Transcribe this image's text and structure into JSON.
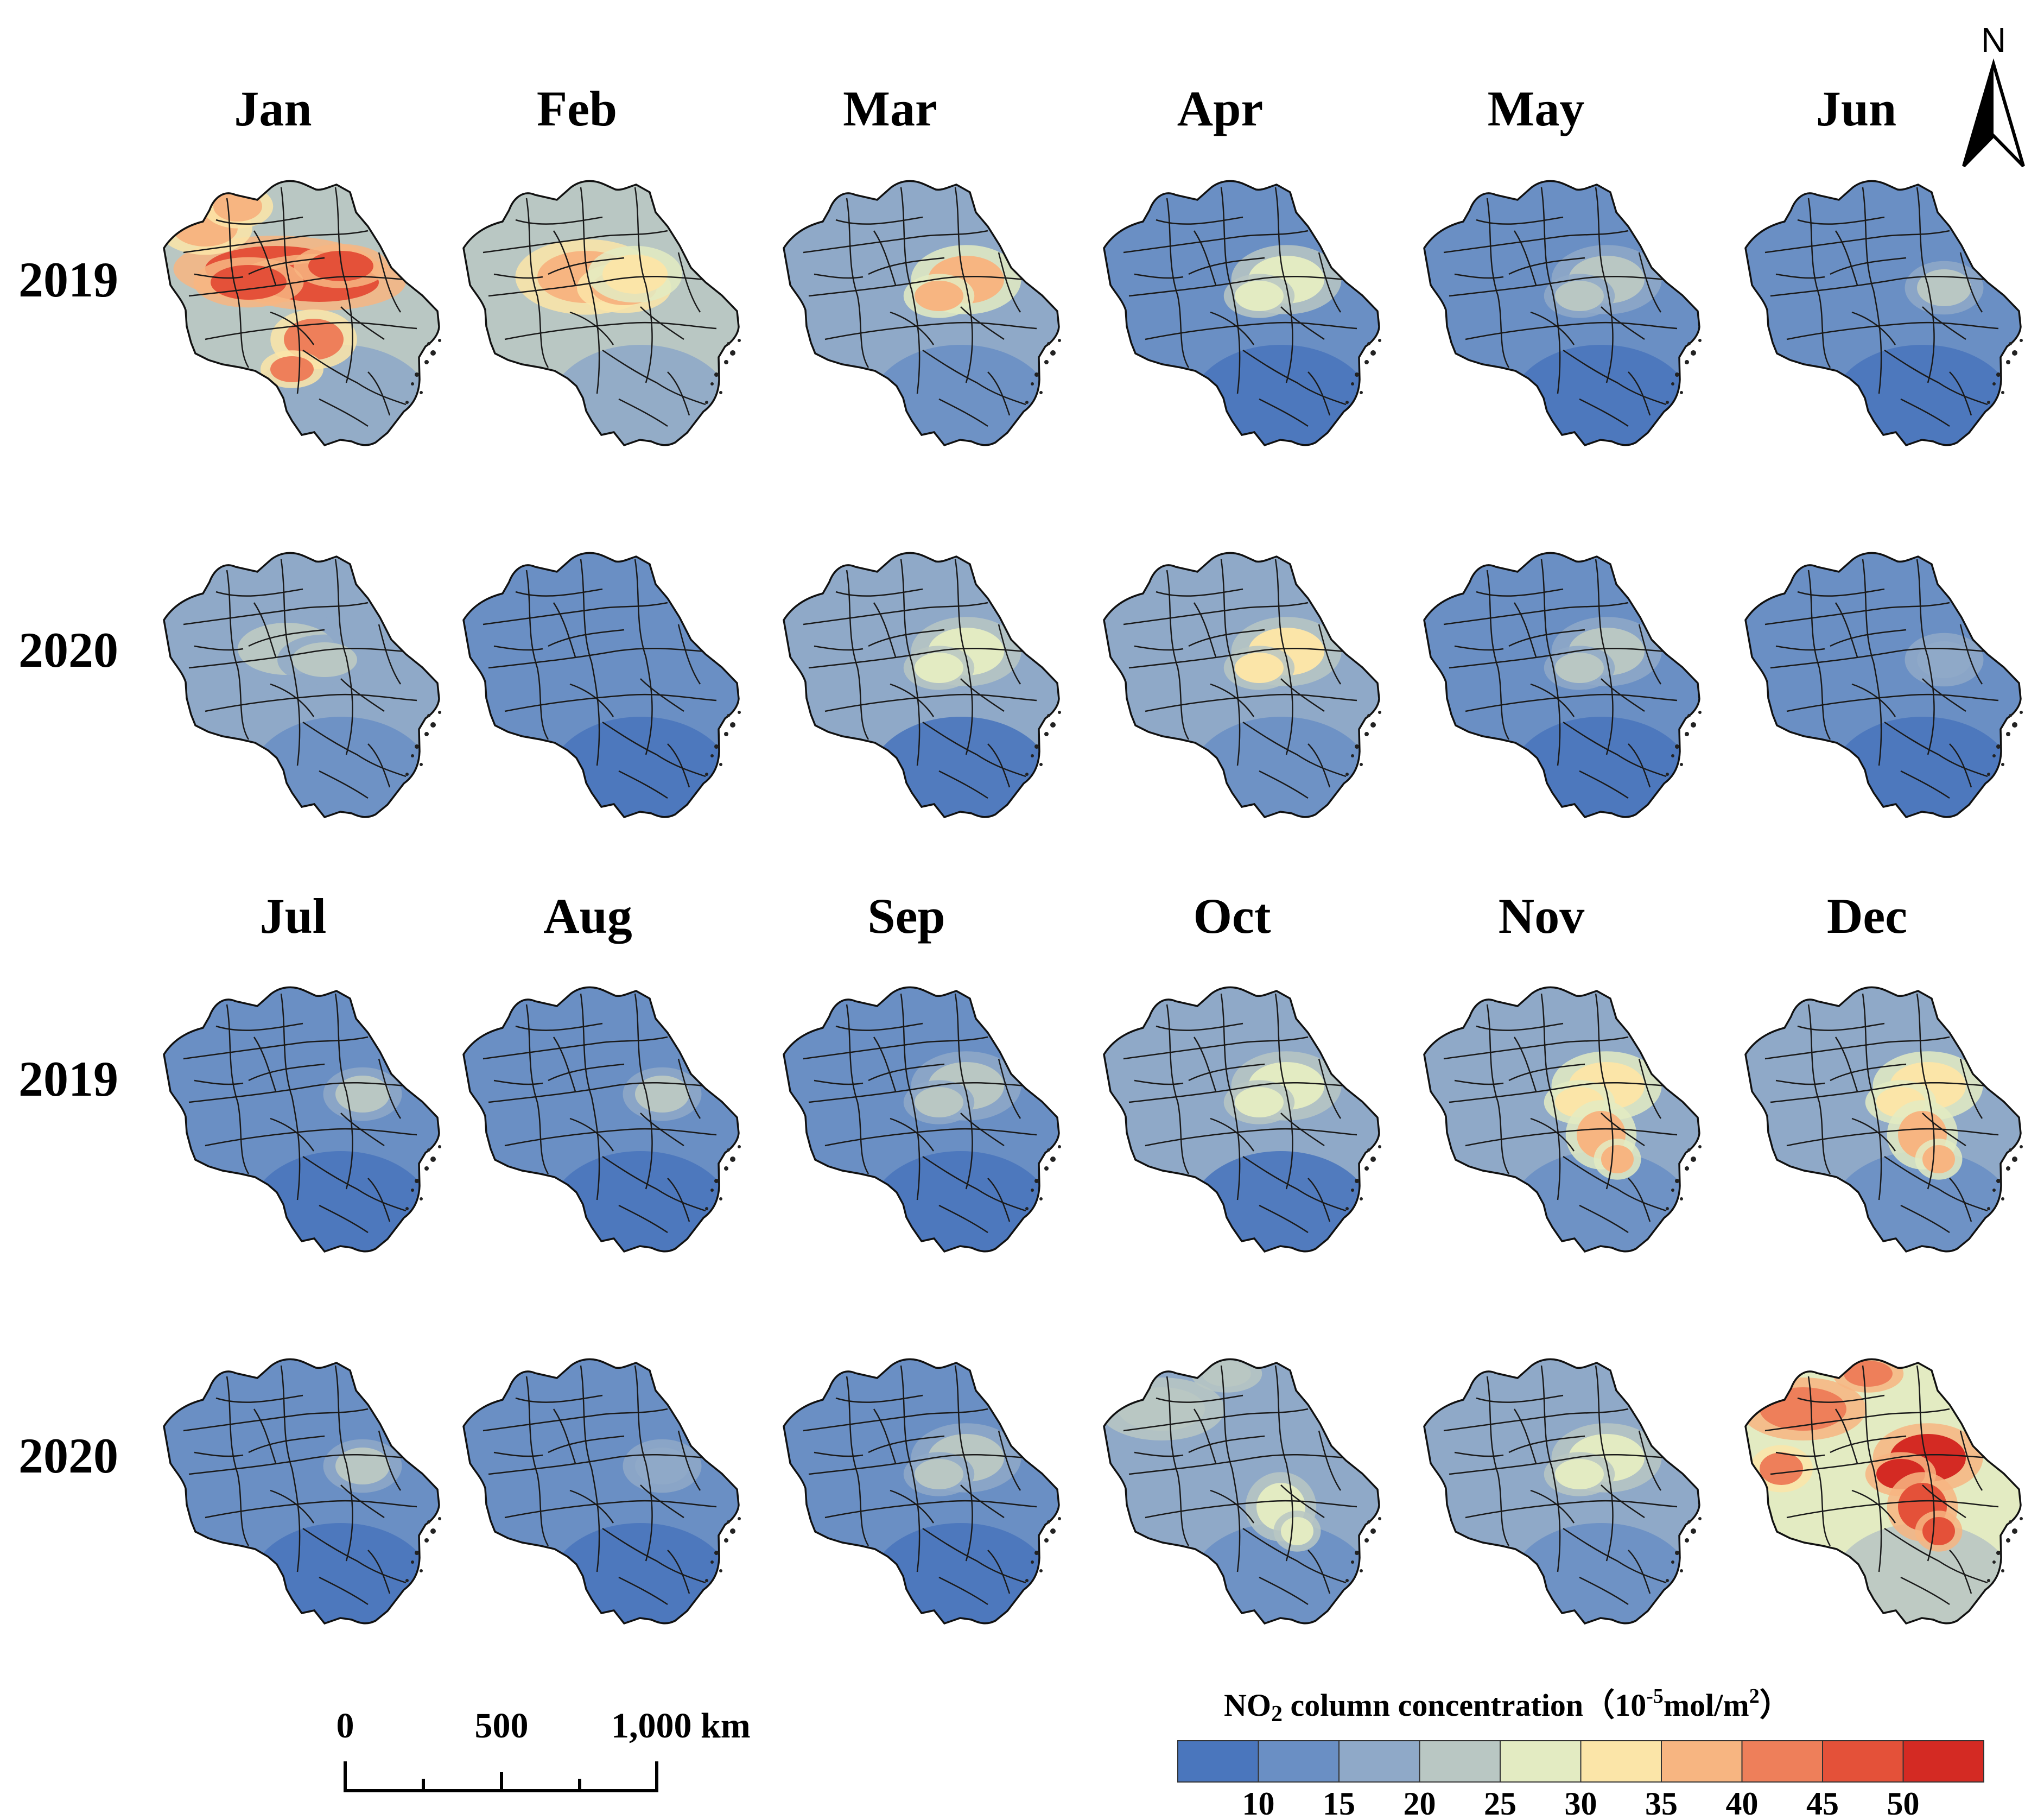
{
  "figure": {
    "months": [
      "Jan",
      "Feb",
      "Mar",
      "Apr",
      "May",
      "Jun",
      "Jul",
      "Aug",
      "Sep",
      "Oct",
      "Nov",
      "Dec"
    ],
    "years": [
      "2019",
      "2020"
    ]
  },
  "map_data": {
    "panels": [
      {
        "month": "Jan",
        "year": "2019",
        "base_level": 24,
        "hotspots": [
          {
            "zone": "center-band",
            "level": 46
          },
          {
            "zone": "north-west",
            "level": 36
          },
          {
            "zone": "south-central",
            "level": 40
          }
        ]
      },
      {
        "month": "Jan",
        "year": "2020",
        "base_level": 16,
        "hotspots": [
          {
            "zone": "center",
            "level": 23
          }
        ]
      },
      {
        "month": "Feb",
        "year": "2019",
        "base_level": 23,
        "hotspots": [
          {
            "zone": "center",
            "level": 37
          },
          {
            "zone": "center-east",
            "level": 33
          }
        ]
      },
      {
        "month": "Feb",
        "year": "2020",
        "base_level": 12,
        "hotspots": []
      },
      {
        "month": "Mar",
        "year": "2019",
        "base_level": 17,
        "hotspots": [
          {
            "zone": "east-center",
            "level": 38
          }
        ]
      },
      {
        "month": "Mar",
        "year": "2020",
        "base_level": 15,
        "hotspots": [
          {
            "zone": "east-center",
            "level": 26
          }
        ]
      },
      {
        "month": "Apr",
        "year": "2019",
        "base_level": 14,
        "hotspots": [
          {
            "zone": "east-center",
            "level": 26
          }
        ]
      },
      {
        "month": "Apr",
        "year": "2020",
        "base_level": 16,
        "hotspots": [
          {
            "zone": "east-center",
            "level": 31
          }
        ]
      },
      {
        "month": "May",
        "year": "2019",
        "base_level": 14,
        "hotspots": [
          {
            "zone": "east-center",
            "level": 24
          }
        ]
      },
      {
        "month": "May",
        "year": "2020",
        "base_level": 13,
        "hotspots": [
          {
            "zone": "east-center",
            "level": 22
          }
        ]
      },
      {
        "month": "Jun",
        "year": "2019",
        "base_level": 13,
        "hotspots": [
          {
            "zone": "east",
            "level": 24
          }
        ]
      },
      {
        "month": "Jun",
        "year": "2020",
        "base_level": 12,
        "hotspots": [
          {
            "zone": "east",
            "level": 19
          }
        ]
      },
      {
        "month": "Jul",
        "year": "2019",
        "base_level": 12,
        "hotspots": [
          {
            "zone": "east",
            "level": 22
          }
        ]
      },
      {
        "month": "Jul",
        "year": "2020",
        "base_level": 12,
        "hotspots": [
          {
            "zone": "east",
            "level": 21
          }
        ]
      },
      {
        "month": "Aug",
        "year": "2019",
        "base_level": 11,
        "hotspots": [
          {
            "zone": "east",
            "level": 20
          }
        ]
      },
      {
        "month": "Aug",
        "year": "2020",
        "base_level": 11,
        "hotspots": [
          {
            "zone": "east",
            "level": 19
          }
        ]
      },
      {
        "month": "Sep",
        "year": "2019",
        "base_level": 12,
        "hotspots": [
          {
            "zone": "east-center",
            "level": 23
          }
        ]
      },
      {
        "month": "Sep",
        "year": "2020",
        "base_level": 12,
        "hotspots": [
          {
            "zone": "east-center",
            "level": 22
          }
        ]
      },
      {
        "month": "Oct",
        "year": "2019",
        "base_level": 15,
        "hotspots": [
          {
            "zone": "east-center",
            "level": 25
          }
        ]
      },
      {
        "month": "Oct",
        "year": "2020",
        "base_level": 17,
        "hotspots": [
          {
            "zone": "north",
            "level": 24
          },
          {
            "zone": "south-east",
            "level": 26
          }
        ]
      },
      {
        "month": "Nov",
        "year": "2019",
        "base_level": 17,
        "hotspots": [
          {
            "zone": "east-center",
            "level": 34
          },
          {
            "zone": "south-east",
            "level": 38
          }
        ]
      },
      {
        "month": "Nov",
        "year": "2020",
        "base_level": 17,
        "hotspots": [
          {
            "zone": "east-center",
            "level": 28
          }
        ]
      },
      {
        "month": "Dec",
        "year": "2019",
        "base_level": 19,
        "hotspots": [
          {
            "zone": "east-center",
            "level": 32
          },
          {
            "zone": "south-east",
            "level": 38
          }
        ]
      },
      {
        "month": "Dec",
        "year": "2020",
        "base_level": 28,
        "hotspots": [
          {
            "zone": "east-center",
            "level": 50
          },
          {
            "zone": "north",
            "level": 44
          },
          {
            "zone": "south-east",
            "level": 48
          },
          {
            "zone": "west",
            "level": 40
          }
        ]
      }
    ]
  },
  "scale_bar": {
    "labels": [
      "0",
      "500",
      "1,000 km"
    ]
  },
  "north_arrow": {
    "label": "N",
    "icon": "north-arrow-icon"
  },
  "legend": {
    "title_prefix": "NO",
    "title_sub": "2",
    "title_main": " column concentration（",
    "title_unit_a": "10",
    "title_unit_exp": "-5",
    "title_unit_b": "mol/m",
    "title_unit_exp2": "2",
    "title_close": "）",
    "ticks": [
      "10",
      "15",
      "20",
      "25",
      "30",
      "35",
      "40",
      "45",
      "50"
    ],
    "colors": [
      "#4a76bd",
      "#6a8fc4",
      "#8fa9c8",
      "#b9c7c3",
      "#e3ebc2",
      "#fbe5a8",
      "#f7b581",
      "#ee7f5a",
      "#e45139",
      "#d42a23"
    ]
  }
}
